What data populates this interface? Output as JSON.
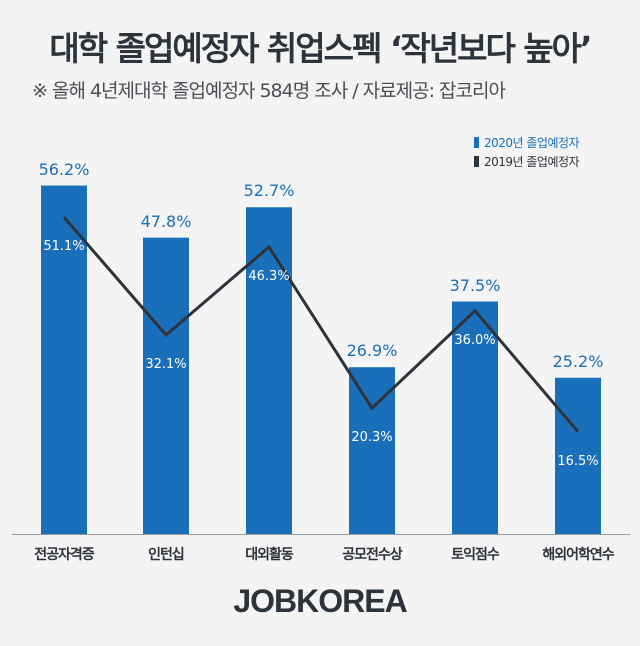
{
  "header": {
    "title": "대학 졸업예정자 취업스펙 ‘작년보다 높아’",
    "subtitle": "※ 올해 4년제대학 졸업예정자 584명 조사 / 자료제공: 잡코리아"
  },
  "legend": [
    {
      "label": "2020년 졸업예정자",
      "color": "#1a6fbb"
    },
    {
      "label": "2019년 졸업예정자",
      "color": "#2d333b"
    }
  ],
  "colors": {
    "bar": "#1a6fbb",
    "line": "#2d333b",
    "background": "#f5f4f4"
  },
  "logo": "JOBKOREA",
  "chart_data": {
    "type": "bar",
    "title": "대학 졸업예정자 취업스펙 ‘작년보다 높아’",
    "subtitle": "※ 올해 4년제대학 졸업예정자 584명 조사 / 자료제공: 잡코리아",
    "categories": [
      "전공자격증",
      "인턴십",
      "대외활동",
      "공모전수상",
      "토익점수",
      "해외어학연수"
    ],
    "series": [
      {
        "name": "2020년 졸업예정자",
        "type": "bar",
        "values": [
          56.2,
          47.8,
          52.7,
          26.9,
          37.5,
          25.2
        ],
        "labels": [
          "56.2%",
          "47.8%",
          "52.7%",
          "26.9%",
          "37.5%",
          "25.2%"
        ]
      },
      {
        "name": "2019년 졸업예정자",
        "type": "line",
        "values": [
          51.1,
          32.1,
          46.3,
          20.3,
          36.0,
          16.5
        ],
        "labels": [
          "51.1%",
          "32.1%",
          "46.3%",
          "20.3%",
          "36.0%",
          "16.5%"
        ]
      }
    ],
    "xlabel": "",
    "ylabel": "",
    "unit": "%",
    "grid": false,
    "legend_position": "top-right"
  }
}
